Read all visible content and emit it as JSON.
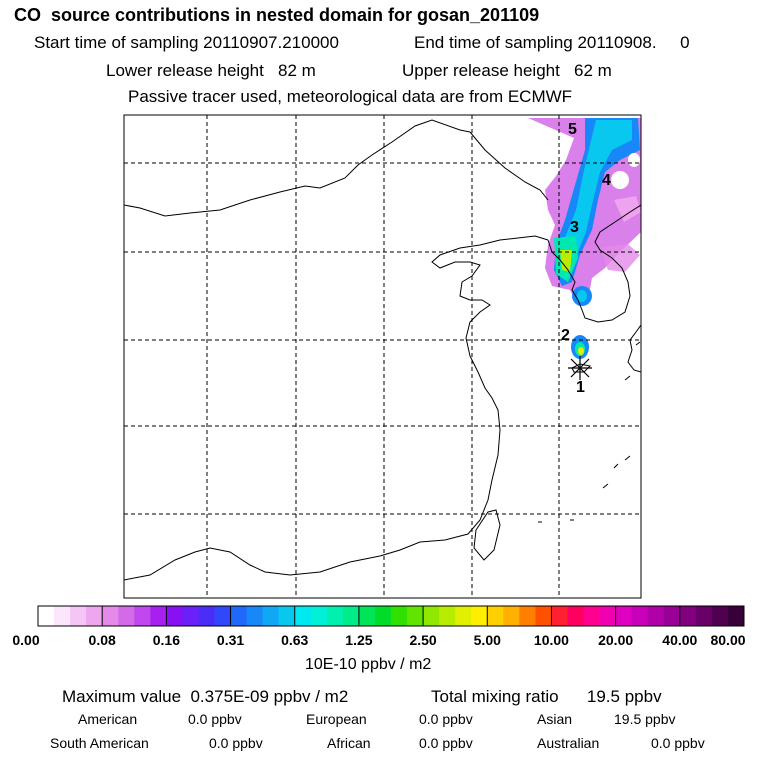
{
  "header": {
    "title": "CO  source contributions in nested domain for gosan_201109",
    "start_label": "Start time of sampling 20110907.210000",
    "end_label": "End time of sampling 20110908.     0",
    "lower_label": "Lower release height   82 m",
    "upper_label": "Upper release height   62 m",
    "note": "Passive tracer used, meteorological data are from ECMWF"
  },
  "chart_data": {
    "type": "heatmap",
    "title": "CO  source contributions in nested domain for gosan_201109",
    "colorbar": {
      "unit": "10E-10 ppbv / m2",
      "tick_labels": [
        "0.00",
        "0.08",
        "0.16",
        "0.31",
        "0.63",
        "1.25",
        "2.50",
        "5.00",
        "10.00",
        "20.00",
        "40.00",
        "80.00"
      ],
      "colors": [
        "#ffffff",
        "#fbe6fb",
        "#f5c6f5",
        "#eea6ee",
        "#e58ae8",
        "#d46ae8",
        "#c048ee",
        "#a820f0",
        "#8a10f4",
        "#6a20f6",
        "#4a2ef8",
        "#3048fa",
        "#2068fa",
        "#1888f8",
        "#10a8f4",
        "#08c8f0",
        "#00e8f0",
        "#00f0d8",
        "#00f0b0",
        "#00ec88",
        "#00e458",
        "#00dc28",
        "#30e000",
        "#60e400",
        "#90e800",
        "#b8ec00",
        "#e0f000",
        "#ffee00",
        "#ffd000",
        "#ffb000",
        "#ff8000",
        "#ff5000",
        "#ff2030",
        "#ff0060",
        "#ff0090",
        "#f000b0",
        "#e000c0",
        "#c800b8",
        "#b000a8",
        "#980098",
        "#800080",
        "#680068",
        "#500050",
        "#380038"
      ]
    },
    "trajectory_labels": [
      "1",
      "2",
      "3",
      "4",
      "5"
    ],
    "receptor_marker": "asterisk"
  },
  "stats": {
    "max_text": "Maximum value  0.375E-09 ppbv / m2",
    "total_text": "Total mixing ratio      19.5 ppbv",
    "regions": [
      {
        "name": "American",
        "value": "0.0 ppbv"
      },
      {
        "name": "European",
        "value": "0.0 ppbv"
      },
      {
        "name": "Asian",
        "value": "19.5 ppbv"
      },
      {
        "name": "South American",
        "value": "0.0 ppbv"
      },
      {
        "name": "African",
        "value": "0.0 ppbv"
      },
      {
        "name": "Australian",
        "value": "0.0 ppbv"
      }
    ]
  }
}
